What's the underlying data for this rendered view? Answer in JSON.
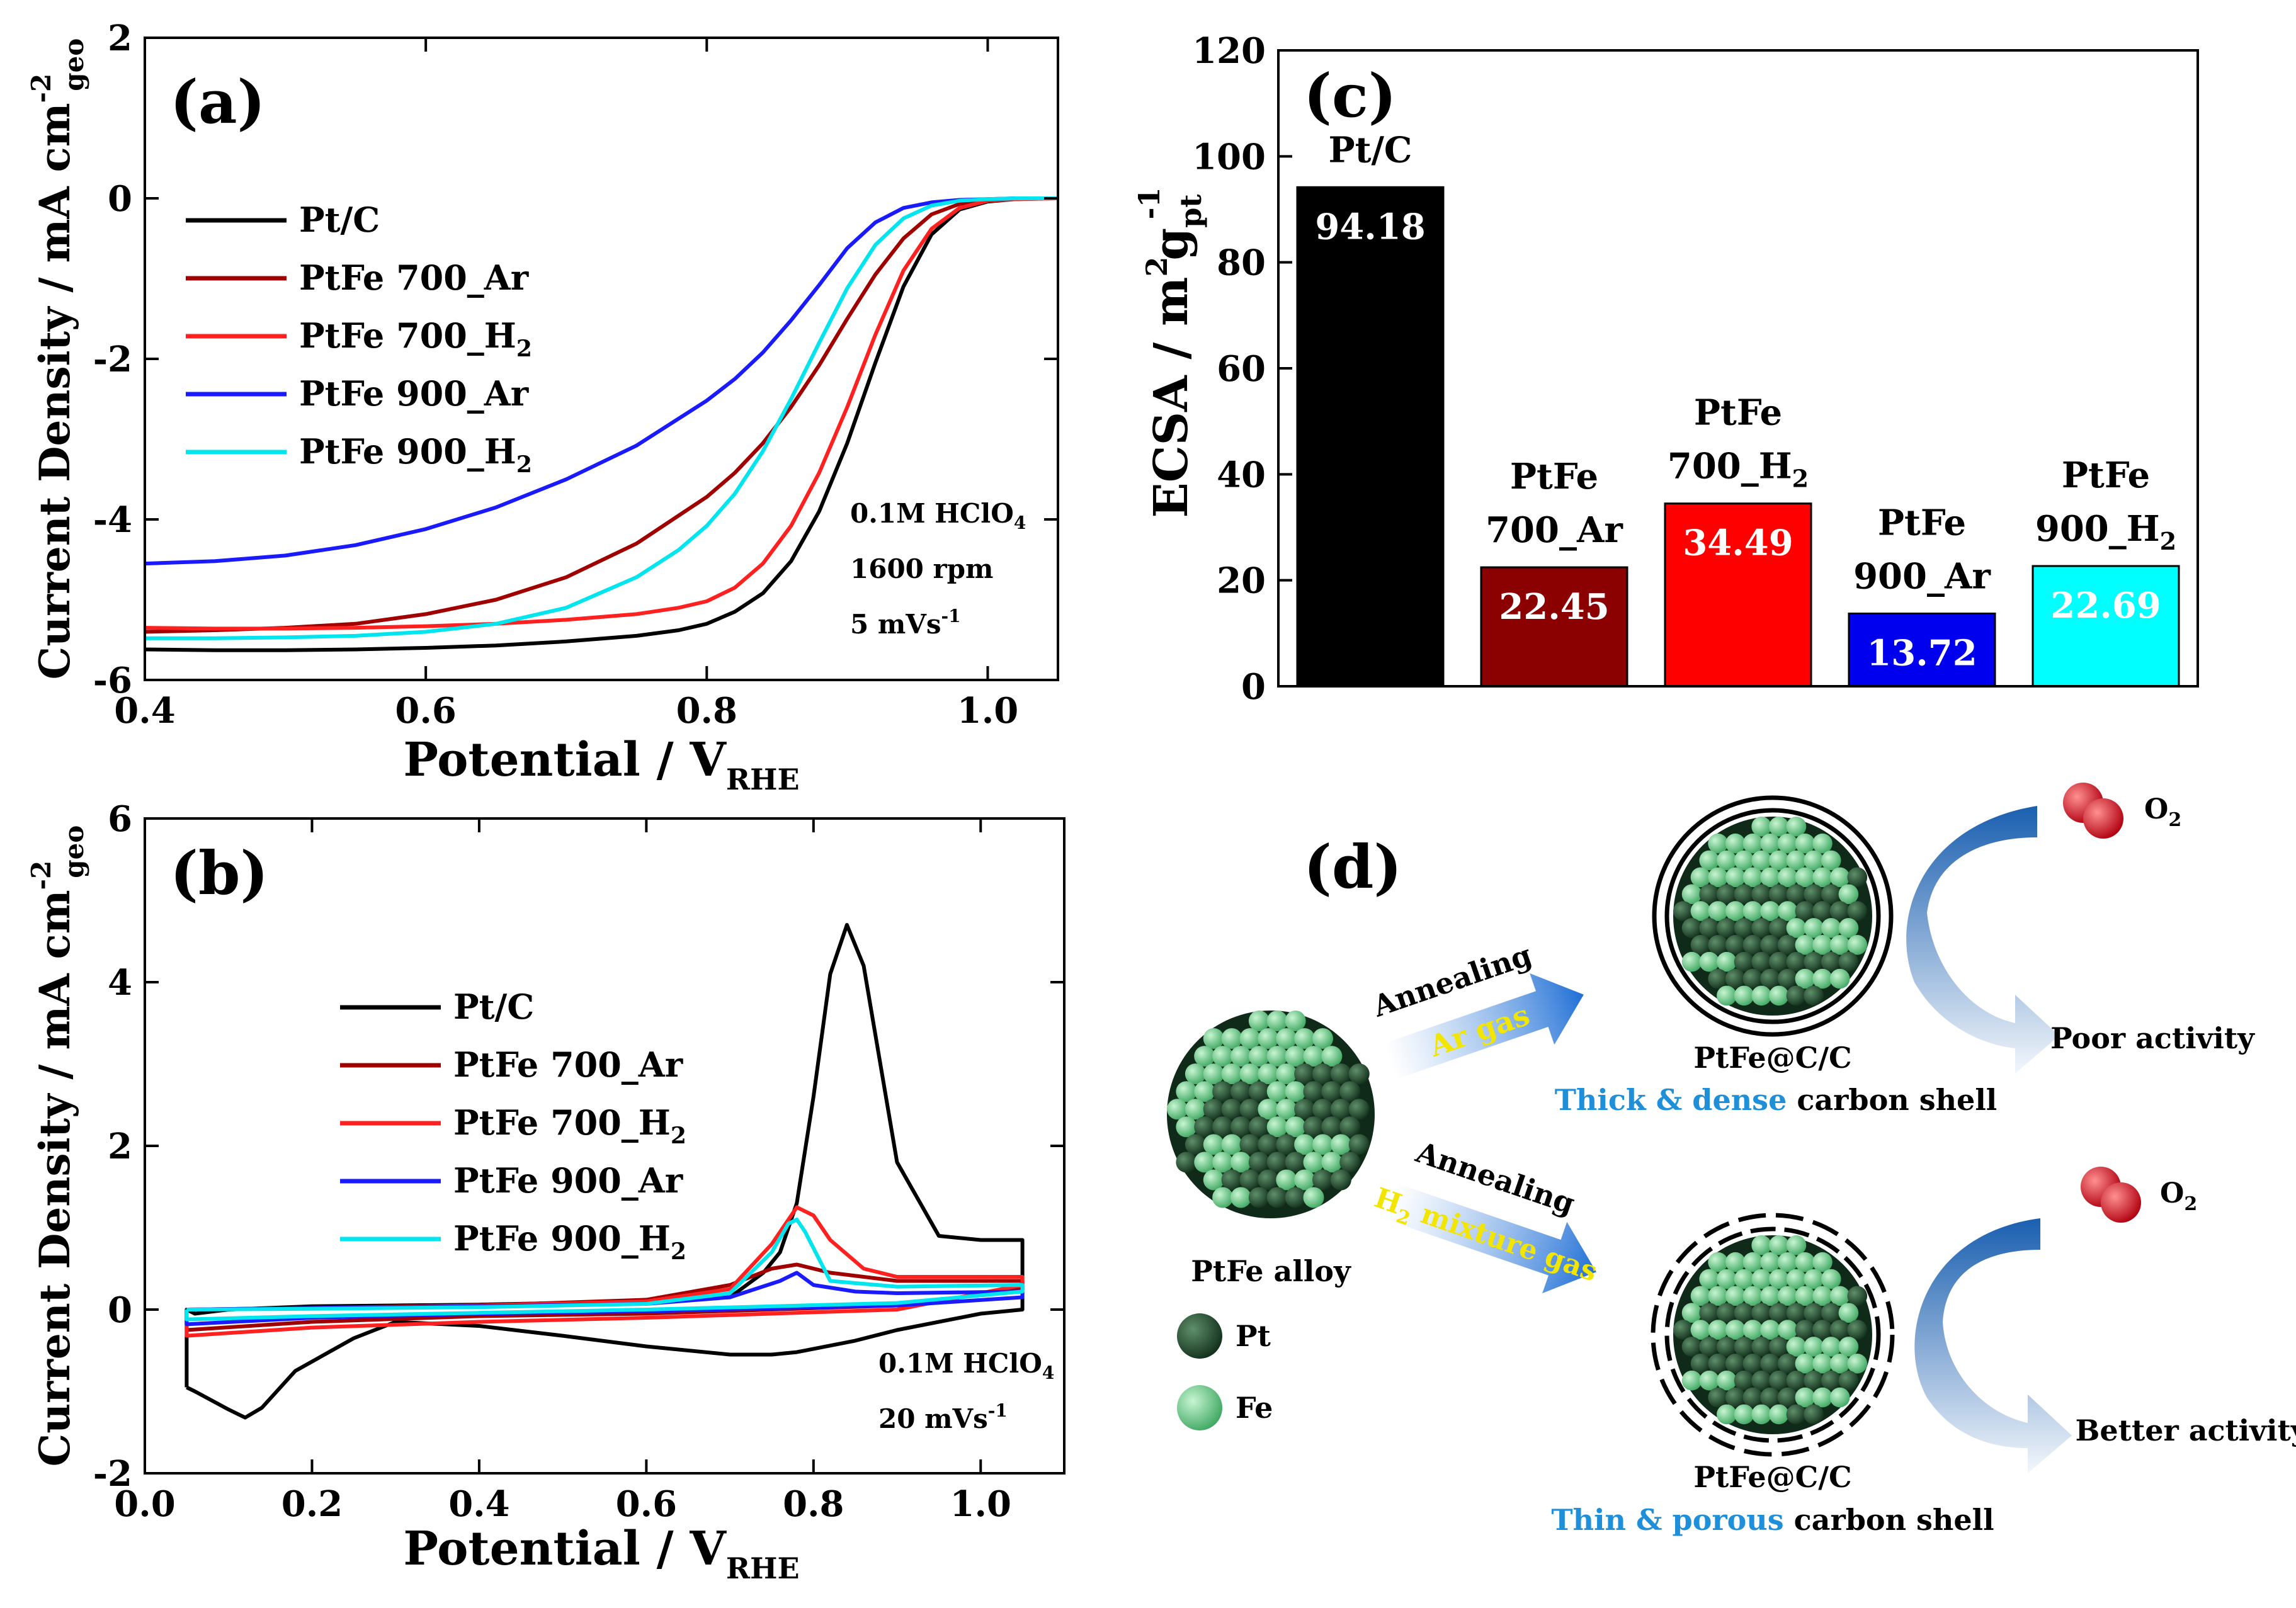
{
  "chart_data": [
    {
      "panel_label": "(a)",
      "type": "line",
      "title": "",
      "xlabel": "Potential / V",
      "xlabel_sub": "RHE",
      "ylabel": "Current Density / mA cm",
      "ylabel_sup": "-2",
      "ylabel_sub": "geo",
      "xlim": [
        0.4,
        1.05
      ],
      "ylim": [
        -6,
        2
      ],
      "xticks": [
        "0.4",
        "0.6",
        "0.8",
        "1.0"
      ],
      "yticks": [
        "-6",
        "-4",
        "-2",
        "0",
        "2"
      ],
      "legend": [
        {
          "name": "Pt/C",
          "sub": "",
          "color": "#000000"
        },
        {
          "name": "PtFe 700_Ar",
          "sub": "",
          "color": "#a00000"
        },
        {
          "name": "PtFe 700_H",
          "sub": "2",
          "color": "#ff2020"
        },
        {
          "name": "PtFe 900_Ar",
          "sub": "",
          "color": "#1a1aff"
        },
        {
          "name": "PtFe 900_H",
          "sub": "2",
          "color": "#00e5ee"
        }
      ],
      "annotations": [
        {
          "text": "0.1M HClO",
          "sub": "4",
          "sup": ""
        },
        {
          "text": "1600 rpm",
          "sub": "",
          "sup": ""
        },
        {
          "text": "5 mVs",
          "sub": "",
          "sup": "-1"
        }
      ],
      "series": [
        {
          "name": "Pt/C",
          "color": "#000000",
          "x": [
            0.4,
            0.45,
            0.5,
            0.55,
            0.6,
            0.65,
            0.7,
            0.75,
            0.78,
            0.8,
            0.82,
            0.84,
            0.86,
            0.88,
            0.9,
            0.92,
            0.94,
            0.96,
            0.98,
            1.0,
            1.02,
            1.05
          ],
          "y": [
            -5.62,
            -5.63,
            -5.63,
            -5.62,
            -5.6,
            -5.57,
            -5.52,
            -5.45,
            -5.38,
            -5.3,
            -5.15,
            -4.92,
            -4.52,
            -3.9,
            -3.05,
            -2.05,
            -1.1,
            -0.45,
            -0.14,
            -0.04,
            -0.01,
            0.0
          ]
        },
        {
          "name": "PtFe 700_Ar",
          "color": "#a00000",
          "x": [
            0.4,
            0.45,
            0.5,
            0.55,
            0.6,
            0.65,
            0.7,
            0.75,
            0.8,
            0.82,
            0.84,
            0.86,
            0.88,
            0.9,
            0.92,
            0.94,
            0.96,
            0.98,
            1.0,
            1.02,
            1.05
          ],
          "y": [
            -5.4,
            -5.38,
            -5.35,
            -5.3,
            -5.18,
            -5.0,
            -4.72,
            -4.3,
            -3.72,
            -3.42,
            -3.05,
            -2.6,
            -2.08,
            -1.5,
            -0.95,
            -0.5,
            -0.2,
            -0.07,
            -0.02,
            0.0,
            0.0
          ]
        },
        {
          "name": "PtFe 700_H2",
          "color": "#ff2020",
          "x": [
            0.4,
            0.45,
            0.5,
            0.55,
            0.6,
            0.65,
            0.7,
            0.75,
            0.78,
            0.8,
            0.82,
            0.84,
            0.86,
            0.88,
            0.9,
            0.92,
            0.94,
            0.96,
            0.98,
            1.0,
            1.02,
            1.05
          ],
          "y": [
            -5.35,
            -5.36,
            -5.36,
            -5.35,
            -5.33,
            -5.3,
            -5.25,
            -5.18,
            -5.1,
            -5.02,
            -4.85,
            -4.55,
            -4.08,
            -3.42,
            -2.6,
            -1.7,
            -0.9,
            -0.38,
            -0.12,
            -0.03,
            -0.01,
            0.0
          ]
        },
        {
          "name": "PtFe 900_Ar",
          "color": "#1a1aff",
          "x": [
            0.4,
            0.45,
            0.5,
            0.55,
            0.6,
            0.65,
            0.7,
            0.75,
            0.8,
            0.82,
            0.84,
            0.86,
            0.88,
            0.9,
            0.92,
            0.94,
            0.96,
            0.98,
            1.0,
            1.02,
            1.05
          ],
          "y": [
            -4.55,
            -4.52,
            -4.45,
            -4.32,
            -4.12,
            -3.85,
            -3.5,
            -3.08,
            -2.52,
            -2.25,
            -1.92,
            -1.52,
            -1.08,
            -0.62,
            -0.3,
            -0.12,
            -0.05,
            -0.02,
            -0.01,
            0.0,
            0.0
          ]
        },
        {
          "name": "PtFe 900_H2",
          "color": "#00e5ee",
          "x": [
            0.4,
            0.45,
            0.5,
            0.55,
            0.6,
            0.65,
            0.7,
            0.75,
            0.78,
            0.8,
            0.82,
            0.84,
            0.86,
            0.88,
            0.9,
            0.92,
            0.94,
            0.96,
            0.98,
            1.0,
            1.02,
            1.05
          ],
          "y": [
            -5.48,
            -5.48,
            -5.47,
            -5.45,
            -5.4,
            -5.3,
            -5.1,
            -4.72,
            -4.38,
            -4.08,
            -3.68,
            -3.15,
            -2.5,
            -1.8,
            -1.12,
            -0.58,
            -0.25,
            -0.09,
            -0.03,
            -0.01,
            0.0,
            0.0
          ]
        }
      ]
    },
    {
      "panel_label": "(b)",
      "type": "line",
      "title": "",
      "xlabel": "Potential / V",
      "xlabel_sub": "RHE",
      "ylabel": "Current Density / mA cm",
      "ylabel_sup": "-2",
      "ylabel_sub": "geo",
      "xlim": [
        0.0,
        1.1
      ],
      "ylim": [
        -2,
        6
      ],
      "xticks": [
        "0.0",
        "0.2",
        "0.4",
        "0.6",
        "0.8",
        "1.0"
      ],
      "yticks": [
        "-2",
        "0",
        "2",
        "4",
        "6"
      ],
      "legend": [
        {
          "name": "Pt/C",
          "sub": "",
          "color": "#000000"
        },
        {
          "name": "PtFe 700_Ar",
          "sub": "",
          "color": "#a00000"
        },
        {
          "name": "PtFe 700_H",
          "sub": "2",
          "color": "#ff2020"
        },
        {
          "name": "PtFe 900_Ar",
          "sub": "",
          "color": "#1a1aff"
        },
        {
          "name": "PtFe 900_H",
          "sub": "2",
          "color": "#00e5ee"
        }
      ],
      "annotations": [
        {
          "text": "0.1M HClO",
          "sub": "4",
          "sup": ""
        },
        {
          "text": "20 mVs",
          "sub": "",
          "sup": "-1"
        }
      ],
      "series": [
        {
          "name": "Pt/C",
          "color": "#000000",
          "x": [
            0.05,
            0.06,
            0.1,
            0.12,
            0.14,
            0.18,
            0.25,
            0.3,
            0.4,
            0.5,
            0.6,
            0.7,
            0.75,
            0.78,
            0.8,
            0.85,
            0.9,
            1.0,
            1.05,
            1.05,
            1.0,
            0.95,
            0.9,
            0.88,
            0.86,
            0.84,
            0.82,
            0.8,
            0.78,
            0.76,
            0.74,
            0.72,
            0.7,
            0.6,
            0.5,
            0.4,
            0.3,
            0.2,
            0.1,
            0.06,
            0.05,
            0.05
          ],
          "y": [
            -0.95,
            -1.0,
            -1.22,
            -1.32,
            -1.2,
            -0.75,
            -0.35,
            -0.15,
            -0.2,
            -0.32,
            -0.45,
            -0.55,
            -0.55,
            -0.52,
            -0.48,
            -0.38,
            -0.25,
            -0.05,
            0.0,
            0.85,
            0.85,
            0.9,
            1.8,
            3.0,
            4.2,
            4.7,
            4.1,
            2.6,
            1.3,
            0.7,
            0.45,
            0.3,
            0.15,
            0.1,
            0.08,
            0.06,
            0.05,
            0.04,
            0.0,
            -0.05,
            0.0,
            -0.95
          ]
        },
        {
          "name": "PtFe 700_Ar",
          "color": "#a00000",
          "x": [
            0.05,
            0.2,
            0.4,
            0.6,
            0.7,
            0.75,
            0.78,
            0.82,
            0.9,
            1.05,
            1.05,
            0.9,
            0.6,
            0.4,
            0.2,
            0.05,
            0.05
          ],
          "y": [
            0.0,
            0.02,
            0.05,
            0.12,
            0.3,
            0.5,
            0.55,
            0.45,
            0.35,
            0.35,
            0.25,
            0.05,
            -0.05,
            -0.08,
            -0.15,
            -0.25,
            0.0
          ]
        },
        {
          "name": "PtFe 700_H2",
          "color": "#ff2020",
          "x": [
            0.05,
            0.2,
            0.4,
            0.6,
            0.7,
            0.75,
            0.78,
            0.8,
            0.82,
            0.86,
            0.9,
            1.05,
            1.05,
            0.9,
            0.6,
            0.4,
            0.2,
            0.05,
            0.05
          ],
          "y": [
            0.0,
            0.02,
            0.05,
            0.1,
            0.25,
            0.8,
            1.25,
            1.15,
            0.85,
            0.5,
            0.4,
            0.4,
            0.3,
            0.0,
            -0.1,
            -0.15,
            -0.22,
            -0.32,
            0.0
          ]
        },
        {
          "name": "PtFe 900_Ar",
          "color": "#1a1aff",
          "x": [
            0.05,
            0.2,
            0.4,
            0.6,
            0.7,
            0.76,
            0.78,
            0.8,
            0.85,
            0.9,
            1.05,
            1.05,
            0.9,
            0.6,
            0.4,
            0.2,
            0.05,
            0.05
          ],
          "y": [
            0.0,
            0.02,
            0.04,
            0.07,
            0.15,
            0.35,
            0.45,
            0.3,
            0.22,
            0.2,
            0.22,
            0.15,
            0.05,
            -0.02,
            -0.05,
            -0.1,
            -0.18,
            0.0
          ]
        },
        {
          "name": "PtFe 900_H2",
          "color": "#00e5ee",
          "x": [
            0.05,
            0.2,
            0.4,
            0.6,
            0.7,
            0.75,
            0.77,
            0.78,
            0.79,
            0.82,
            0.9,
            1.05,
            1.05,
            0.9,
            0.6,
            0.4,
            0.2,
            0.05,
            0.05
          ],
          "y": [
            0.0,
            0.01,
            0.03,
            0.07,
            0.2,
            0.7,
            1.05,
            1.1,
            0.95,
            0.35,
            0.28,
            0.3,
            0.22,
            0.08,
            0.0,
            -0.04,
            -0.08,
            -0.12,
            0.0
          ]
        }
      ]
    },
    {
      "panel_label": "(c)",
      "type": "bar",
      "title": "",
      "xlabel": "",
      "ylabel": "ECSA / m",
      "ylabel_sup": "2",
      "ylabel_mid": "g",
      "ylabel_sub": "pt",
      "ylabel_sup2": "-1",
      "ylim": [
        0,
        120
      ],
      "yticks": [
        "0",
        "20",
        "40",
        "60",
        "80",
        "100",
        "120"
      ],
      "categories": [
        {
          "line1": "Pt/C",
          "line2": "",
          "line2_sub": ""
        },
        {
          "line1": "PtFe",
          "line2": "700_Ar",
          "line2_sub": ""
        },
        {
          "line1": "PtFe",
          "line2": "700_H",
          "line2_sub": "2"
        },
        {
          "line1": "PtFe",
          "line2": "900_Ar",
          "line2_sub": ""
        },
        {
          "line1": "PtFe",
          "line2": "900_H",
          "line2_sub": "2"
        }
      ],
      "values": [
        94.18,
        22.45,
        34.49,
        13.72,
        22.69
      ],
      "value_labels": [
        "94.18",
        "22.45",
        "34.49",
        "13.72",
        "22.69"
      ],
      "colors": [
        "#000000",
        "#8b0000",
        "#ff0000",
        "#0000ee",
        "#00ffff"
      ]
    }
  ],
  "panel_d": {
    "label": "(d)",
    "alloy_label": "PtFe alloy",
    "legend_pt": "Pt",
    "legend_fe": "Fe",
    "top_arrow_label": "Annealing",
    "top_gas_label": "Ar gas",
    "bottom_arrow_label": "Annealing",
    "bottom_gas_label": "H",
    "bottom_gas_sub": "2",
    "bottom_gas_rest": " mixture gas",
    "top_product": "PtFe@C/C",
    "top_shell_highlight": "Thick & dense",
    "top_shell_rest": " carbon shell",
    "bottom_product": "PtFe@C/C",
    "bottom_shell_highlight": "Thin & porous",
    "bottom_shell_rest": " carbon shell",
    "o2_text": "O",
    "o2_sub": "2",
    "top_activity": "Poor activity",
    "bottom_activity": "Better activity",
    "colors": {
      "pt": "#1e4d2b",
      "fe": "#6fd68f",
      "arrow": "#1f6fd6",
      "highlight": "#1e8fd8",
      "gas_text": "#f2e600",
      "o2": "#e0141e"
    }
  }
}
